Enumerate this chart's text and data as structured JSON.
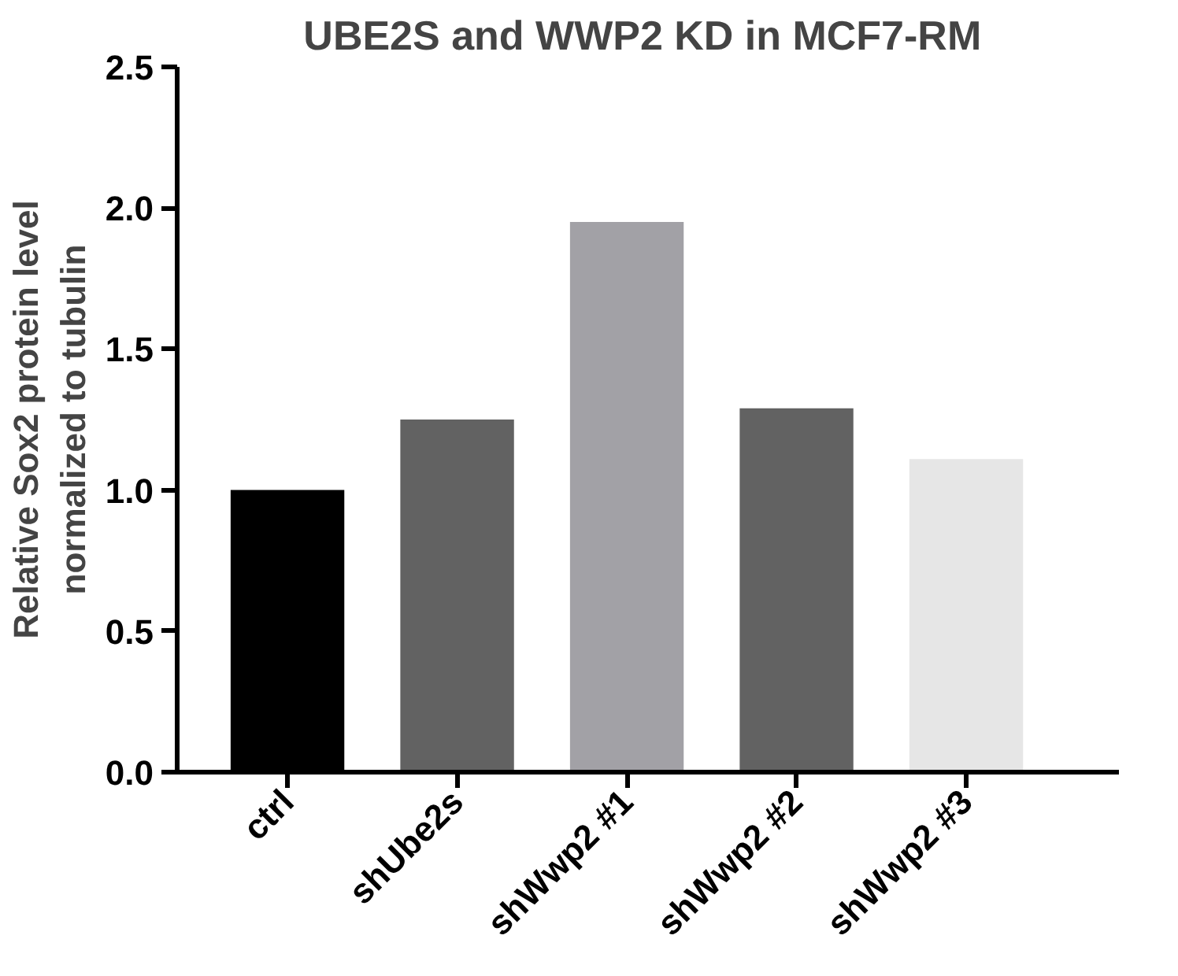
{
  "chart_data": {
    "type": "bar",
    "title": "UBE2S and  WWP2 KD in MCF7-RM",
    "ylabel": "Relative Sox2 protein level\nnormalized to tubulin",
    "categories": [
      "ctrl",
      "shUbe2s",
      "shWwp2 #1",
      "shWwp2 #2",
      "shWwp2 #3"
    ],
    "values": [
      1.0,
      1.25,
      1.95,
      1.29,
      1.11
    ],
    "colors": [
      "#000000",
      "#626262",
      "#a2a1a6",
      "#626262",
      "#e6e6e6"
    ],
    "ylim": [
      0,
      2.5
    ],
    "yticks": [
      {
        "value": 0,
        "label": "0.0"
      },
      {
        "value": 0.5,
        "label": "0.5"
      },
      {
        "value": 1,
        "label": "1.0"
      },
      {
        "value": 1.5,
        "label": "1.5"
      },
      {
        "value": 2,
        "label": "2.0"
      },
      {
        "value": 2.5,
        "label": "2.5"
      }
    ],
    "grid": false
  }
}
